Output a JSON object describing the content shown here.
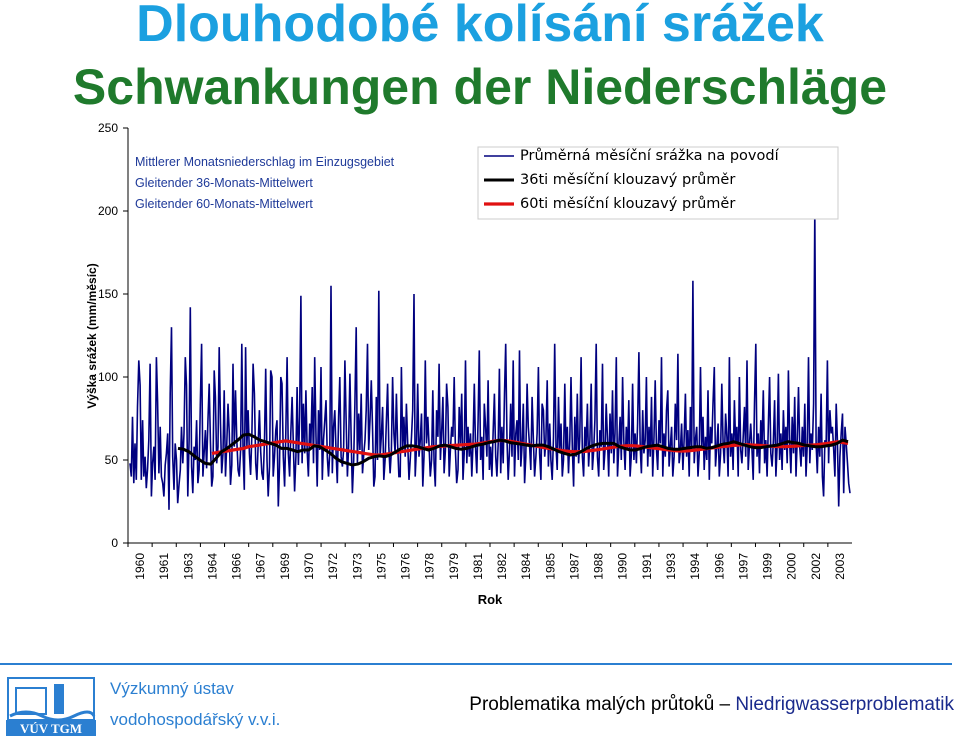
{
  "header": {
    "title_cz": "Dlouhodobé kolísání srážek",
    "title_de": "Schwankungen der Niederschläge"
  },
  "chart_data": {
    "type": "line",
    "ylabel": "Výška srážek (mm/měsíc)",
    "xlabel": "Rok",
    "ylim": [
      0,
      250
    ],
    "yticks": [
      0,
      50,
      100,
      150,
      200,
      250
    ],
    "x_tick_labels": [
      "1960",
      "1961",
      "1963",
      "1964",
      "1966",
      "1967",
      "1969",
      "1970",
      "1972",
      "1973",
      "1975",
      "1976",
      "1978",
      "1979",
      "1981",
      "1982",
      "1984",
      "1985",
      "1987",
      "1988",
      "1990",
      "1991",
      "1993",
      "1994",
      "1996",
      "1997",
      "1999",
      "2000",
      "2002",
      "2003"
    ],
    "x_range_years": [
      1960.0,
      2004.0
    ],
    "legend_de": [
      "Mittlerer Monatsniederschlag im Einzugsgebiet",
      "Gleitender 36-Monats-Mittelwert",
      "Gleitender 60-Monats-Mittelwert"
    ],
    "series": [
      {
        "name": "Průměrná měsíční srážka na povodí",
        "color": "#00007f",
        "values": [
          48,
          40,
          76,
          36,
          60,
          38,
          82,
          110,
          95,
          38,
          74,
          40,
          52,
          33,
          45,
          62,
          108,
          28,
          48,
          58,
          38,
          112,
          85,
          42,
          70,
          40,
          36,
          28,
          47,
          54,
          66,
          20,
          90,
          130,
          52,
          32,
          60,
          50,
          24,
          35,
          44,
          70,
          48,
          66,
          112,
          95,
          28,
          62,
          142,
          46,
          30,
          58,
          50,
          74,
          36,
          44,
          86,
          120,
          40,
          54,
          68,
          45,
          73,
          96,
          62,
          34,
          40,
          104,
          88,
          48,
          58,
          118,
          72,
          42,
          54,
          92,
          40,
          60,
          84,
          66,
          35,
          47,
          108,
          58,
          92,
          62,
          44,
          40,
          56,
          120,
          54,
          32,
          118,
          58,
          80,
          54,
          41,
          66,
          108,
          90,
          48,
          38,
          60,
          80,
          55,
          42,
          38,
          62,
          105,
          50,
          28,
          46,
          104,
          100,
          40,
          52,
          68,
          74,
          22,
          46,
          100,
          96,
          52,
          34,
          66,
          112,
          54,
          40,
          66,
          88,
          58,
          31,
          52,
          94,
          47,
          76,
          149,
          48,
          84,
          54,
          92,
          55,
          40,
          72,
          60,
          94,
          48,
          112,
          64,
          34,
          80,
          56,
          106,
          38,
          62,
          74,
          86,
          52,
          40,
          55,
          155,
          42,
          70,
          80,
          54,
          36,
          76,
          100,
          52,
          46,
          56,
          110,
          75,
          40,
          58,
          102,
          62,
          30,
          50,
          84,
          130,
          48,
          78,
          56,
          90,
          42,
          53,
          62,
          80,
          120,
          56,
          74,
          98,
          70,
          34,
          40,
          88,
          50,
          152,
          52,
          64,
          82,
          38,
          50,
          72,
          96,
          58,
          42,
          56,
          100,
          66,
          54,
          90,
          60,
          40,
          40,
          106,
          56,
          76,
          52,
          84,
          60,
          38,
          50,
          64,
          80,
          150,
          40,
          58,
          96,
          52,
          62,
          78,
          34,
          52,
          110,
          60,
          76,
          58,
          40,
          50,
          92,
          48,
          34,
          80,
          64,
          108,
          50,
          66,
          88,
          42,
          56,
          96,
          82,
          40,
          56,
          70,
          64,
          100,
          56,
          36,
          44,
          82,
          60,
          90,
          38,
          54,
          110,
          48,
          70,
          52,
          66,
          40,
          60,
          96,
          58,
          42,
          74,
          116,
          50,
          64,
          38,
          84,
          70,
          52,
          98,
          44,
          58,
          40,
          66,
          90,
          52,
          40,
          60,
          105,
          42,
          70,
          48,
          90,
          120,
          62,
          38,
          56,
          84,
          52,
          110,
          40,
          66,
          74,
          50,
          116,
          46,
          58,
          84,
          36,
          52,
          96,
          70,
          58,
          44,
          88,
          62,
          40,
          52,
          66,
          106,
          54,
          38,
          84,
          80,
          52,
          62,
          98,
          46,
          72,
          50,
          38,
          64,
          120,
          58,
          44,
          88,
          56,
          72,
          40,
          50,
          96,
          54,
          70,
          42,
          62,
          100,
          58,
          34,
          76,
          52,
          90,
          48,
          64,
          112,
          52,
          40,
          70,
          58,
          84,
          46,
          62,
          96,
          44,
          56,
          74,
          120,
          52,
          40,
          68,
          58,
          108,
          44,
          56,
          84,
          62,
          40,
          78,
          54,
          92,
          48,
          66,
          112,
          40,
          58,
          76,
          50,
          100,
          62,
          44,
          70,
          56,
          86,
          40,
          54,
          96,
          50,
          66,
          48,
          72,
          115,
          58,
          42,
          80,
          54,
          62,
          100,
          46,
          70,
          52,
          88,
          40,
          64,
          98,
          56,
          44,
          74,
          60,
          112,
          40,
          66,
          52,
          80,
          92,
          46,
          58,
          70,
          40,
          52,
          84,
          62,
          114,
          48,
          56,
          72,
          44,
          62,
          90,
          52,
          68,
          40,
          82,
          56,
          158,
          48,
          62,
          70,
          40,
          54,
          106,
          58,
          76,
          44,
          64,
          50,
          92,
          38,
          70,
          60,
          84,
          106,
          46,
          58,
          72,
          40,
          54,
          96,
          60,
          48,
          78,
          64,
          40,
          112,
          52,
          66,
          44,
          86,
          58,
          70,
          40,
          100,
          56,
          48,
          64,
          82,
          52,
          110,
          44,
          60,
          72,
          56,
          38,
          84,
          120,
          52,
          66,
          42,
          74,
          58,
          92,
          48,
          62,
          40,
          70,
          100,
          54,
          46,
          62,
          86,
          40,
          58,
          102,
          50,
          66,
          44,
          80,
          56,
          70,
          48,
          104,
          60,
          42,
          76,
          54,
          88,
          40,
          62,
          94,
          58,
          46,
          70,
          52,
          84,
          40,
          60,
          112,
          48,
          66,
          56,
          84,
          200,
          60,
          42,
          70,
          52,
          90,
          40,
          28,
          62,
          58,
          110,
          48,
          80,
          66,
          70,
          56,
          40,
          84,
          62,
          22,
          52,
          66,
          78,
          30,
          70,
          60,
          48,
          36,
          30
        ]
      },
      {
        "name": "36ti měsíční klouzavý průměr",
        "color": "#000000",
        "values": [
          57,
          56.5,
          55,
          52.5,
          50,
          48,
          47.5,
          51,
          55,
          57,
          59.5,
          62,
          65,
          65.5,
          64,
          62,
          61,
          60,
          59,
          57,
          57,
          56,
          55,
          56,
          56,
          58.5,
          58,
          56,
          54,
          51,
          49,
          48,
          47,
          47.5,
          49,
          51,
          52,
          52.5,
          52,
          53,
          55,
          57,
          58.5,
          58.5,
          58,
          57,
          56,
          57,
          58.5,
          59,
          58,
          57,
          56.5,
          57,
          58,
          59,
          59.5,
          60.5,
          61,
          62,
          61.5,
          60.5,
          60,
          59.5,
          59,
          58.5,
          59,
          59,
          58,
          56.5,
          55,
          54,
          53,
          53.5,
          55,
          57,
          58.5,
          59.5,
          60,
          60,
          60,
          58,
          57,
          56,
          56,
          57,
          58,
          58.5,
          59,
          58,
          57,
          56.5,
          56.5,
          57,
          57.5,
          58,
          58,
          57,
          57.5,
          58.5,
          59.5,
          60,
          61,
          60,
          59,
          58,
          57.5,
          57.5,
          58,
          58.5,
          59,
          60,
          61,
          60.5,
          60,
          59,
          58.5,
          58,
          58,
          58.5,
          59,
          60,
          62,
          61
        ]
      },
      {
        "name": "60ti měsíční klouzavý průměr",
        "color": "#e01010",
        "values": [
          54,
          54.5,
          55,
          55.5,
          56,
          56.5,
          57,
          58,
          58.5,
          59,
          59.5,
          60,
          60.5,
          61,
          61.5,
          61,
          60.5,
          60,
          59.5,
          59,
          58.5,
          58,
          57.5,
          57,
          56.5,
          56,
          55.5,
          55,
          54.5,
          54,
          53.5,
          53,
          53,
          53.5,
          54,
          54.5,
          55,
          55.5,
          56,
          56.5,
          57,
          57.5,
          58,
          58.2,
          58.4,
          58.6,
          58.8,
          59,
          59.2,
          59.4,
          59.6,
          60,
          60.5,
          61,
          61.5,
          61.8,
          61.6,
          61.2,
          60.6,
          60,
          59.4,
          58.8,
          58.2,
          57.6,
          57,
          56.5,
          56,
          55.5,
          55.2,
          55,
          55,
          55.2,
          55.6,
          56,
          56.5,
          57,
          57.5,
          58,
          58.4,
          58.6,
          58.6,
          58.4,
          58,
          57.6,
          57.2,
          56.8,
          56.4,
          56,
          55.6,
          55.4,
          55.4,
          55.6,
          56,
          56.4,
          56.8,
          57.2,
          57.6,
          58,
          58.4,
          58.8,
          59,
          59.2,
          59.2,
          59,
          58.8,
          58.6,
          58.4,
          58.2,
          58,
          58,
          58.2,
          58.4,
          58.6,
          58.8,
          59,
          59.2,
          59.6,
          60,
          60.5,
          61,
          60.5,
          60
        ]
      }
    ]
  },
  "legend": {
    "items": [
      "Průměrná měsíční srážka na povodí",
      "36ti měsíční klouzavý průměr",
      "60ti měsíční klouzavý průměr"
    ]
  },
  "footer": {
    "institute_line1": "Výzkumný ústav",
    "institute_line2": "vodohospodářský v.v.i.",
    "logo_text": "VÚV TGM",
    "topic_cz": "Problematika malých průtoků",
    "topic_sep": " – ",
    "topic_de": "Niedrigwasserproblematik"
  }
}
